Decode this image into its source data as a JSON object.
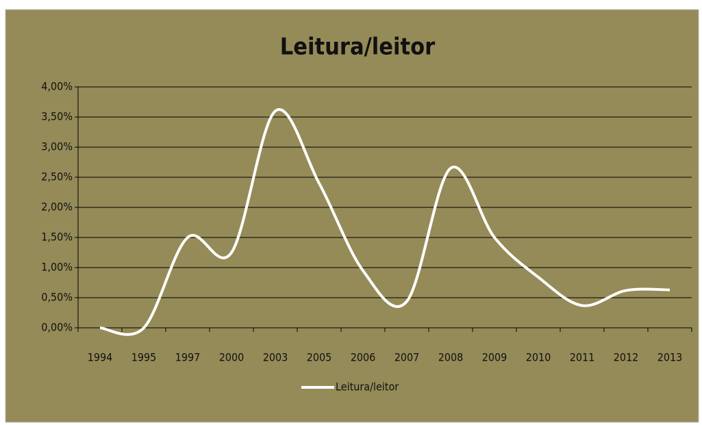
{
  "chart_data": {
    "type": "line",
    "title": "Leitura/leitor",
    "categories": [
      "1994",
      "1995",
      "1997",
      "2000",
      "2003",
      "2005",
      "2006",
      "2007",
      "2008",
      "2009",
      "2010",
      "2011",
      "2012",
      "2013"
    ],
    "series": [
      {
        "name": "Leitura/leitor",
        "color": "#ffffff",
        "values": [
          0,
          0,
          1.5,
          1.25,
          3.6,
          2.4,
          0.95,
          0.44,
          2.65,
          1.5,
          0.84,
          0.37,
          0.62,
          0.63
        ]
      }
    ],
    "ylim": [
      0,
      4
    ],
    "yticks": [
      {
        "value": 0,
        "label": "0,00%"
      },
      {
        "value": 0.5,
        "label": "0,50%"
      },
      {
        "value": 1,
        "label": "1,00%"
      },
      {
        "value": 1.5,
        "label": "1,50%"
      },
      {
        "value": 2,
        "label": "2,00%"
      },
      {
        "value": 2.5,
        "label": "2,50%"
      },
      {
        "value": 3,
        "label": "3,00%"
      },
      {
        "value": 3.5,
        "label": "3,50%"
      },
      {
        "value": 4,
        "label": "4,00%"
      }
    ],
    "grid": true,
    "smooth": true,
    "legend": "bottom"
  }
}
